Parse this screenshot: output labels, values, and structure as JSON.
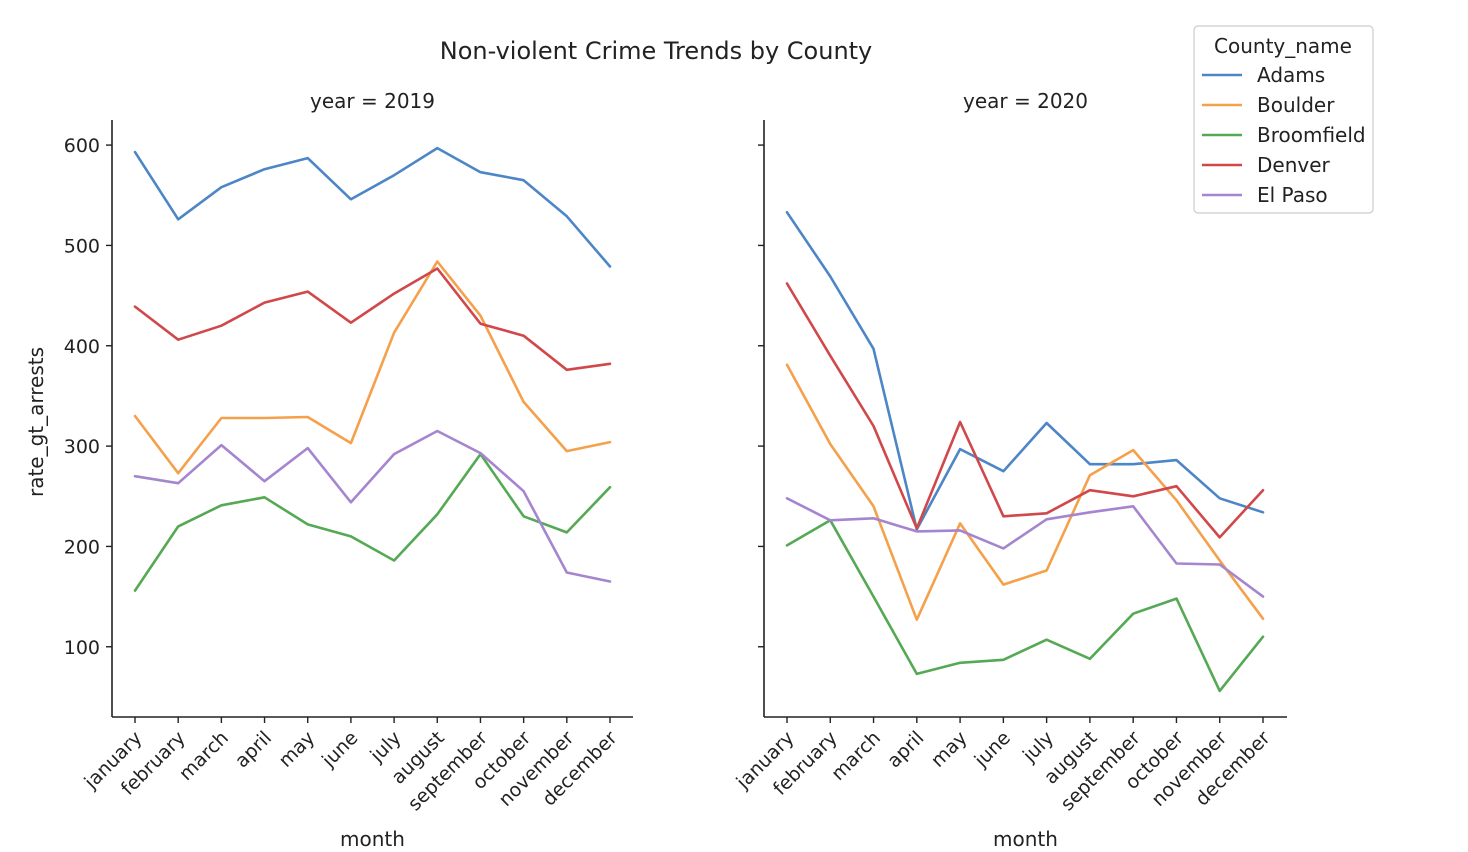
{
  "chart_data": {
    "type": "line",
    "title": "Non-violent Crime Trends by County",
    "xlabel": "month",
    "ylabel": "rate_gt_arrests",
    "ylim": [
      30,
      625
    ],
    "yticks": [
      100,
      200,
      300,
      400,
      500,
      600
    ],
    "categories": [
      "january",
      "february",
      "march",
      "april",
      "may",
      "june",
      "july",
      "august",
      "september",
      "october",
      "november",
      "december"
    ],
    "legend": {
      "title": "County_name",
      "placement": "top-right"
    },
    "grid": false,
    "series_colors": {
      "Adams": "#4c86c6",
      "Boulder": "#f5a04a",
      "Broomfield": "#55a955",
      "Denver": "#d0484a",
      "El Paso": "#a685cf"
    },
    "panels": [
      {
        "title": "year = 2019",
        "series": [
          {
            "name": "Adams",
            "values": [
              593,
              526,
              558,
              576,
              587,
              546,
              570,
              597,
              573,
              565,
              529,
              479
            ]
          },
          {
            "name": "Boulder",
            "values": [
              330,
              273,
              328,
              328,
              329,
              303,
              413,
              484,
              430,
              344,
              295,
              304
            ]
          },
          {
            "name": "Broomfield",
            "values": [
              156,
              220,
              241,
              249,
              222,
              210,
              186,
              232,
              292,
              230,
              214,
              259
            ]
          },
          {
            "name": "Denver",
            "values": [
              439,
              406,
              420,
              443,
              454,
              423,
              452,
              477,
              422,
              410,
              376,
              382
            ]
          },
          {
            "name": "El Paso",
            "values": [
              270,
              263,
              301,
              265,
              298,
              244,
              292,
              315,
              293,
              255,
              174,
              165
            ]
          }
        ]
      },
      {
        "title": "year = 2020",
        "series": [
          {
            "name": "Adams",
            "values": [
              533,
              469,
              397,
              217,
              297,
              275,
              323,
              282,
              282,
              286,
              248,
              234
            ]
          },
          {
            "name": "Boulder",
            "values": [
              381,
              302,
              240,
              127,
              223,
              162,
              176,
              271,
              296,
              246,
              186,
              128
            ]
          },
          {
            "name": "Broomfield",
            "values": [
              201,
              226,
              150,
              73,
              84,
              87,
              107,
              88,
              133,
              148,
              56,
              110
            ]
          },
          {
            "name": "Denver",
            "values": [
              462,
              390,
              320,
              218,
              324,
              230,
              233,
              256,
              250,
              260,
              209,
              256
            ]
          },
          {
            "name": "El Paso",
            "values": [
              248,
              226,
              228,
              215,
              216,
              198,
              227,
              234,
              240,
              183,
              182,
              150
            ]
          }
        ]
      }
    ]
  }
}
